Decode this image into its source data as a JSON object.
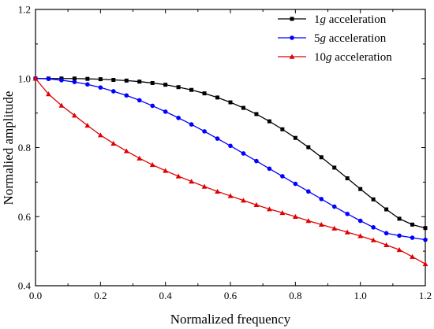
{
  "chart_data": {
    "type": "line",
    "xlabel": "Normalized frequency",
    "ylabel": "Normalied amplitude",
    "xlim": [
      0.0,
      1.2
    ],
    "ylim": [
      0.4,
      1.2
    ],
    "xticks": [
      "0.0",
      "0.2",
      "0.4",
      "0.6",
      "0.8",
      "1.0",
      "1.2"
    ],
    "yticks": [
      "0.4",
      "0.6",
      "0.8",
      "1.0",
      "1.2"
    ],
    "grid": false,
    "legend_position": "top-right",
    "x": [
      0.0,
      0.04,
      0.08,
      0.12,
      0.16,
      0.2,
      0.24,
      0.28,
      0.32,
      0.36,
      0.4,
      0.44,
      0.48,
      0.52,
      0.56,
      0.6,
      0.64,
      0.68,
      0.72,
      0.76,
      0.8,
      0.84,
      0.88,
      0.92,
      0.96,
      1.0,
      1.04,
      1.08,
      1.12,
      1.16,
      1.2
    ],
    "series": [
      {
        "name": "1g acceleration",
        "legend_prefix": "1",
        "legend_italic": "g",
        "legend_suffix": " acceleration",
        "color": "#000000",
        "marker": "square",
        "values": [
          1.0,
          1.0,
          1.0,
          1.0,
          0.999,
          0.998,
          0.996,
          0.994,
          0.991,
          0.987,
          0.982,
          0.975,
          0.967,
          0.957,
          0.945,
          0.931,
          0.915,
          0.897,
          0.876,
          0.853,
          0.828,
          0.801,
          0.772,
          0.742,
          0.711,
          0.68,
          0.65,
          0.621,
          0.594,
          0.577,
          0.567
        ]
      },
      {
        "name": "5g acceleration",
        "legend_prefix": "5",
        "legend_italic": "g",
        "legend_suffix": " acceleration",
        "color": "#0000ff",
        "marker": "circle",
        "values": [
          1.0,
          0.999,
          0.995,
          0.99,
          0.983,
          0.974,
          0.963,
          0.951,
          0.937,
          0.921,
          0.904,
          0.886,
          0.867,
          0.847,
          0.826,
          0.805,
          0.783,
          0.761,
          0.739,
          0.717,
          0.695,
          0.673,
          0.651,
          0.629,
          0.608,
          0.588,
          0.569,
          0.552,
          0.545,
          0.539,
          0.533
        ]
      },
      {
        "name": "10g acceleration",
        "legend_prefix": "10",
        "legend_italic": "g",
        "legend_suffix": " acceleration",
        "color": "#e00000",
        "marker": "triangle",
        "values": [
          1.0,
          0.955,
          0.922,
          0.893,
          0.864,
          0.836,
          0.812,
          0.79,
          0.769,
          0.75,
          0.733,
          0.717,
          0.702,
          0.687,
          0.673,
          0.66,
          0.647,
          0.634,
          0.622,
          0.611,
          0.6,
          0.588,
          0.577,
          0.566,
          0.555,
          0.544,
          0.532,
          0.518,
          0.504,
          0.484,
          0.463
        ]
      }
    ]
  }
}
